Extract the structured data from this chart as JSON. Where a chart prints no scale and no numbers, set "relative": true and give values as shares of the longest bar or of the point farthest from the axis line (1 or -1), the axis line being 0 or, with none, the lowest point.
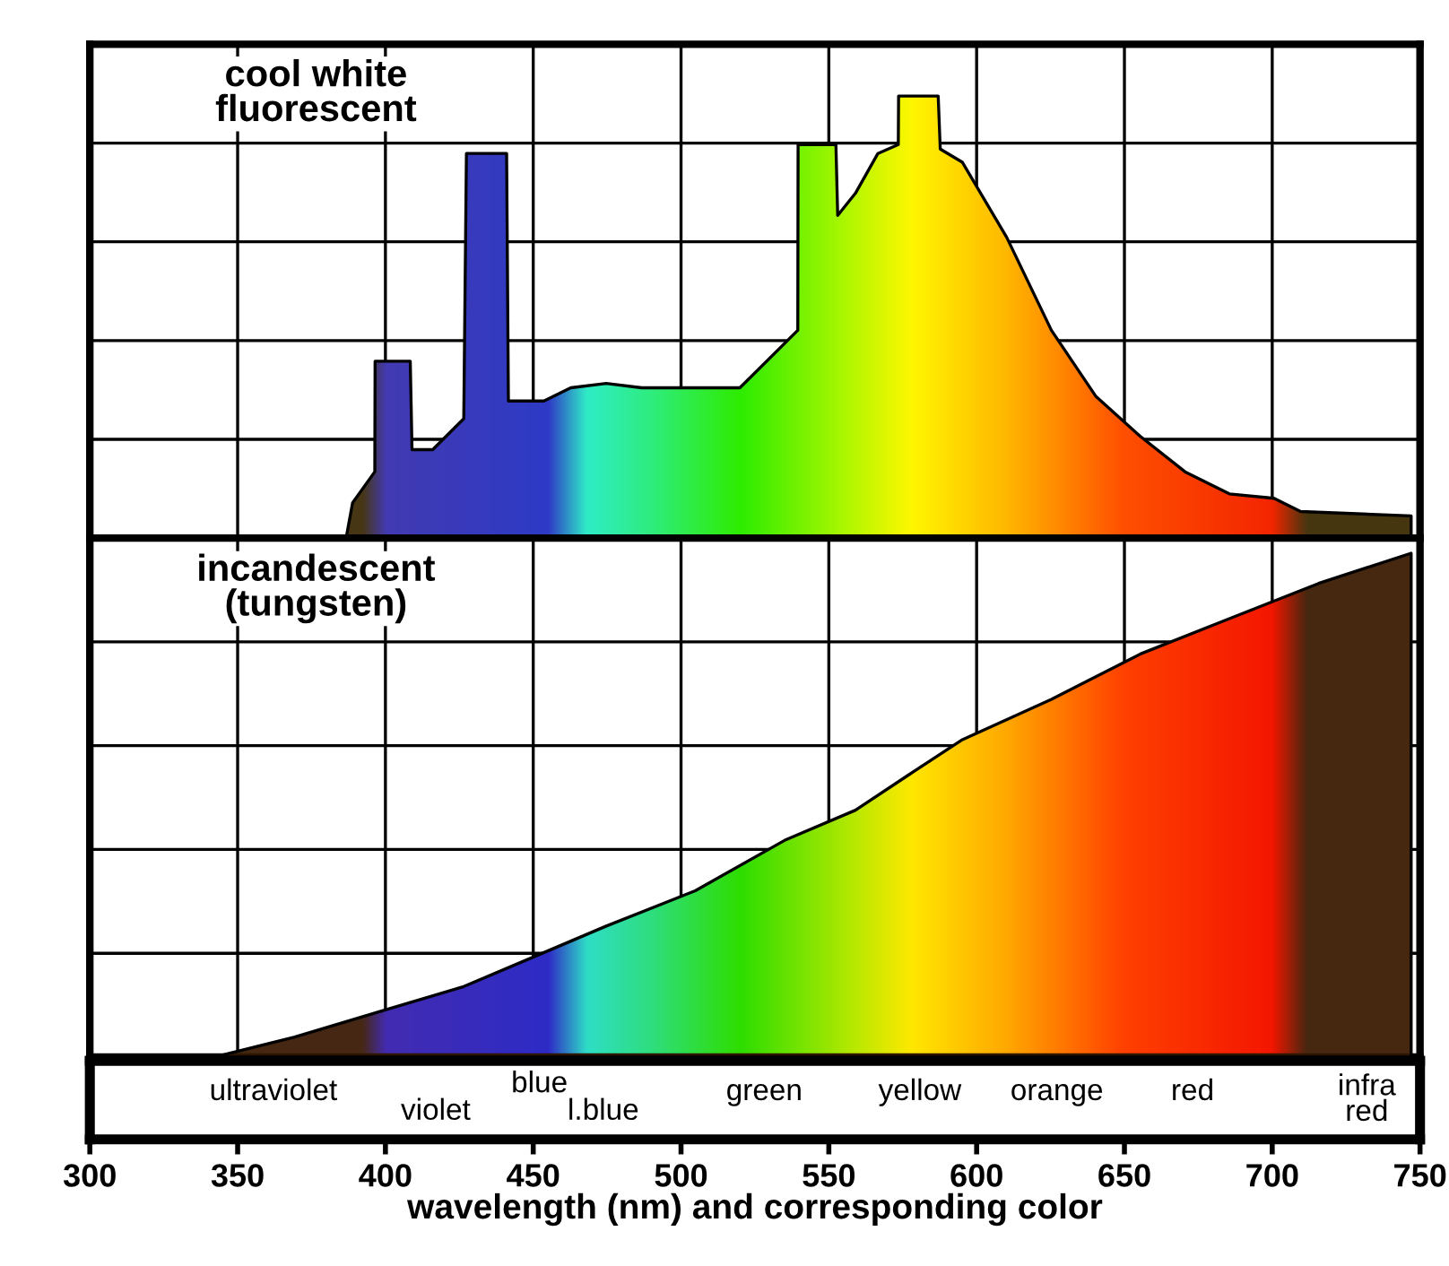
{
  "chart_data": [
    {
      "type": "area",
      "title": "cool white\nfluorescent",
      "relative": true,
      "xlim": [
        300,
        750
      ],
      "xticks": [
        300,
        350,
        400,
        450,
        500,
        550,
        600,
        650,
        700,
        750
      ],
      "grid": true,
      "tick_labels": false,
      "series": [
        {
          "x": [
            386.7,
            388.9,
            396.4,
            396.5,
            408.4,
            409,
            416,
            426.5,
            427.4,
            441,
            441.6,
            453.6,
            462.7,
            474.7,
            486.7,
            519.9,
            535,
            539.5,
            539.6,
            552.4,
            553,
            559,
            566.6,
            573.5,
            573.6,
            587,
            587.7,
            595.2,
            610.2,
            625.3,
            640.4,
            655.4,
            670.5,
            685.5,
            700.6,
            709.6,
            747
          ],
          "color": "#ffd000",
          "values": [
            0,
            0.08,
            0.15,
            0.4,
            0.4,
            0.2,
            0.2,
            0.27,
            0.87,
            0.87,
            0.31,
            0.31,
            0.34,
            0.35,
            0.34,
            0.34,
            0.44,
            0.47,
            0.89,
            0.89,
            0.73,
            0.78,
            0.87,
            0.89,
            1.0,
            1.0,
            0.88,
            0.85,
            0.68,
            0.47,
            0.32,
            0.23,
            0.15,
            0.1,
            0.09,
            0.06,
            0.05
          ]
        }
      ]
    },
    {
      "type": "area",
      "title": "incandescent\n(tungsten)",
      "relative": true,
      "xlim": [
        300,
        750
      ],
      "xticks": [
        300,
        350,
        400,
        450,
        500,
        550,
        600,
        650,
        700,
        750
      ],
      "grid": true,
      "tick_labels": "x",
      "xlabel": "wavelength (nm) and corresponding color",
      "series": [
        {
          "x": [
            342,
            369.3,
            397.9,
            426.5,
            450.6,
            474.7,
            504.8,
            535,
            559,
            577,
            595.2,
            625.3,
            655.4,
            685.5,
            715.7,
            747
          ],
          "color": "#ff8000",
          "values": [
            0,
            0.04,
            0.09,
            0.14,
            0.2,
            0.26,
            0.33,
            0.43,
            0.49,
            0.56,
            0.63,
            0.71,
            0.8,
            0.87,
            0.94,
            1.0
          ]
        }
      ],
      "annotations": [
        "ultraviolet",
        "violet",
        "blue",
        "l.blue",
        "green",
        "yellow",
        "orange",
        "red",
        "infra\nred"
      ]
    }
  ]
}
